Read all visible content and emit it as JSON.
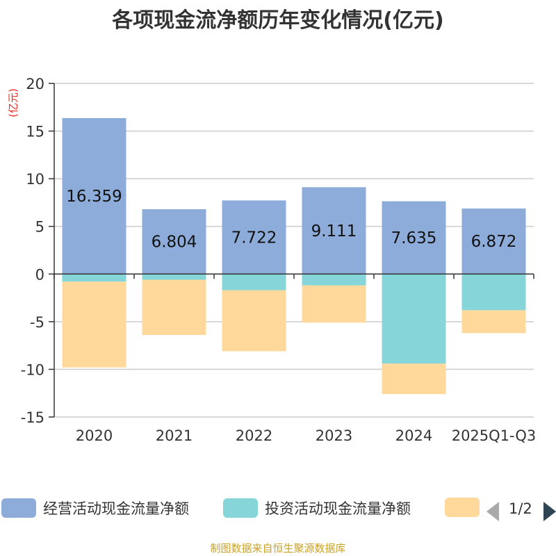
{
  "chart_data": {
    "type": "bar",
    "stacked": true,
    "title": "各项现金流净额历年变化情况(亿元)",
    "ylabel": "(亿元)",
    "ylim": [
      -15,
      20
    ],
    "yticks": [
      20,
      15,
      10,
      5,
      0,
      -5,
      -10,
      -15
    ],
    "categories": [
      "2020",
      "2021",
      "2022",
      "2023",
      "2024",
      "2025Q1-Q3"
    ],
    "series": [
      {
        "name": "经营活动现金流量净额",
        "color": "#8eacd9",
        "values": [
          16.359,
          6.804,
          7.722,
          9.111,
          7.635,
          6.872
        ],
        "labels": [
          "16.359",
          "6.804",
          "7.722",
          "9.111",
          "7.635",
          "6.872"
        ]
      },
      {
        "name": "投资活动现金流量净额",
        "color": "#86d5d8",
        "values": [
          -0.8,
          -0.6,
          -1.7,
          -1.2,
          -9.4,
          -3.8
        ]
      },
      {
        "name": "",
        "color": "#fed99b",
        "values": [
          -9.0,
          -5.8,
          -6.4,
          -3.9,
          -3.2,
          -2.4
        ]
      }
    ]
  },
  "legend": {
    "page": "1/2"
  },
  "source": "制图数据来自恒生聚源数据库"
}
